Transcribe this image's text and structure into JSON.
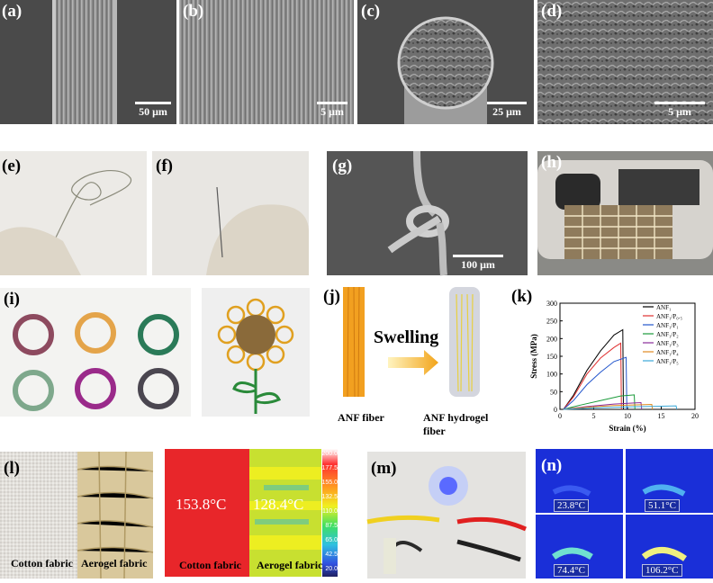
{
  "labels": {
    "a": "(a)",
    "b": "(b)",
    "c": "(c)",
    "d": "(d)",
    "e": "(e)",
    "f": "(f)",
    "g": "(g)",
    "h": "(h)",
    "i": "(i)",
    "j": "(j)",
    "k": "(k)",
    "l": "(l)",
    "m": "(m)",
    "n": "(n)"
  },
  "scalebars": {
    "a": "50 μm",
    "b": "5 μm",
    "c": "25 μm",
    "d": "5 μm",
    "g": "100 μm"
  },
  "panel_j": {
    "swelling": "Swelling",
    "left_caption": "ANF  fiber",
    "right_caption": "ANF hydrogel fiber"
  },
  "panel_l": {
    "cotton_label": "Cotton fabric",
    "aerogel_label": "Aerogel fabric",
    "ir_cotton_temp": "153.8°C",
    "ir_aerogel_temp": "128.4°C",
    "ir_cotton_label": "Cotton fabric",
    "ir_aerogel_label": "Aerogel fabric",
    "colorbar_ticks": [
      "200.0",
      "177.5",
      "155.0",
      "132.5",
      "110.0",
      "87.5",
      "65.0",
      "42.5",
      "20.0"
    ]
  },
  "panel_n": {
    "temps": [
      "23.8°C",
      "51.1°C",
      "74.4°C",
      "106.2°C"
    ]
  },
  "colors": {
    "ir_hot": "#e8262a",
    "ir_cool": "#f5f02a",
    "thermal_bg": "#1a2fd8",
    "chart_axis": "#000000"
  },
  "chart_data": {
    "type": "line",
    "xlabel": "Strain (%)",
    "ylabel": "Stress (MPa)",
    "xlim": [
      0,
      20
    ],
    "ylim": [
      0,
      300
    ],
    "xticks": [
      "0",
      "5",
      "10",
      "15",
      "20"
    ],
    "yticks": [
      "0",
      "50",
      "100",
      "150",
      "200",
      "250",
      "300"
    ],
    "legend_position": "top-right",
    "series": [
      {
        "name": "ANF₁",
        "color": "#000000",
        "points": [
          [
            0.5,
            0
          ],
          [
            2,
            40
          ],
          [
            4,
            110
          ],
          [
            6,
            165
          ],
          [
            8,
            210
          ],
          [
            9.3,
            225
          ],
          [
            9.4,
            0
          ]
        ]
      },
      {
        "name": "ANF₁/P₀.₅",
        "color": "#e03030",
        "points": [
          [
            0.5,
            0
          ],
          [
            2,
            35
          ],
          [
            4,
            100
          ],
          [
            6,
            145
          ],
          [
            8,
            175
          ],
          [
            9,
            187
          ],
          [
            9.1,
            0
          ]
        ]
      },
      {
        "name": "ANF₁/P₁",
        "color": "#2255cc",
        "points": [
          [
            0.5,
            0
          ],
          [
            2,
            25
          ],
          [
            4,
            70
          ],
          [
            6,
            105
          ],
          [
            8,
            135
          ],
          [
            9.8,
            147
          ],
          [
            9.9,
            0
          ]
        ]
      },
      {
        "name": "ANF₁/P₂",
        "color": "#1a9a3a",
        "points": [
          [
            0.5,
            0
          ],
          [
            3,
            12
          ],
          [
            6,
            25
          ],
          [
            9,
            38
          ],
          [
            11,
            41
          ],
          [
            11.1,
            0
          ]
        ]
      },
      {
        "name": "ANF₁/P₃",
        "color": "#8a2a9a",
        "points": [
          [
            0.5,
            0
          ],
          [
            4,
            8
          ],
          [
            8,
            15
          ],
          [
            11,
            18
          ],
          [
            12,
            19
          ],
          [
            12.1,
            0
          ]
        ]
      },
      {
        "name": "ANF₁/P₄",
        "color": "#e08a20",
        "points": [
          [
            0.5,
            0
          ],
          [
            4,
            6
          ],
          [
            8,
            11
          ],
          [
            12,
            13
          ],
          [
            13.6,
            14
          ],
          [
            13.7,
            0
          ]
        ]
      },
      {
        "name": "ANF₁/P₅",
        "color": "#3aa8d8",
        "points": [
          [
            0.5,
            0
          ],
          [
            5,
            4
          ],
          [
            10,
            7
          ],
          [
            15,
            9
          ],
          [
            17.2,
            10
          ],
          [
            17.3,
            0
          ]
        ]
      }
    ]
  }
}
